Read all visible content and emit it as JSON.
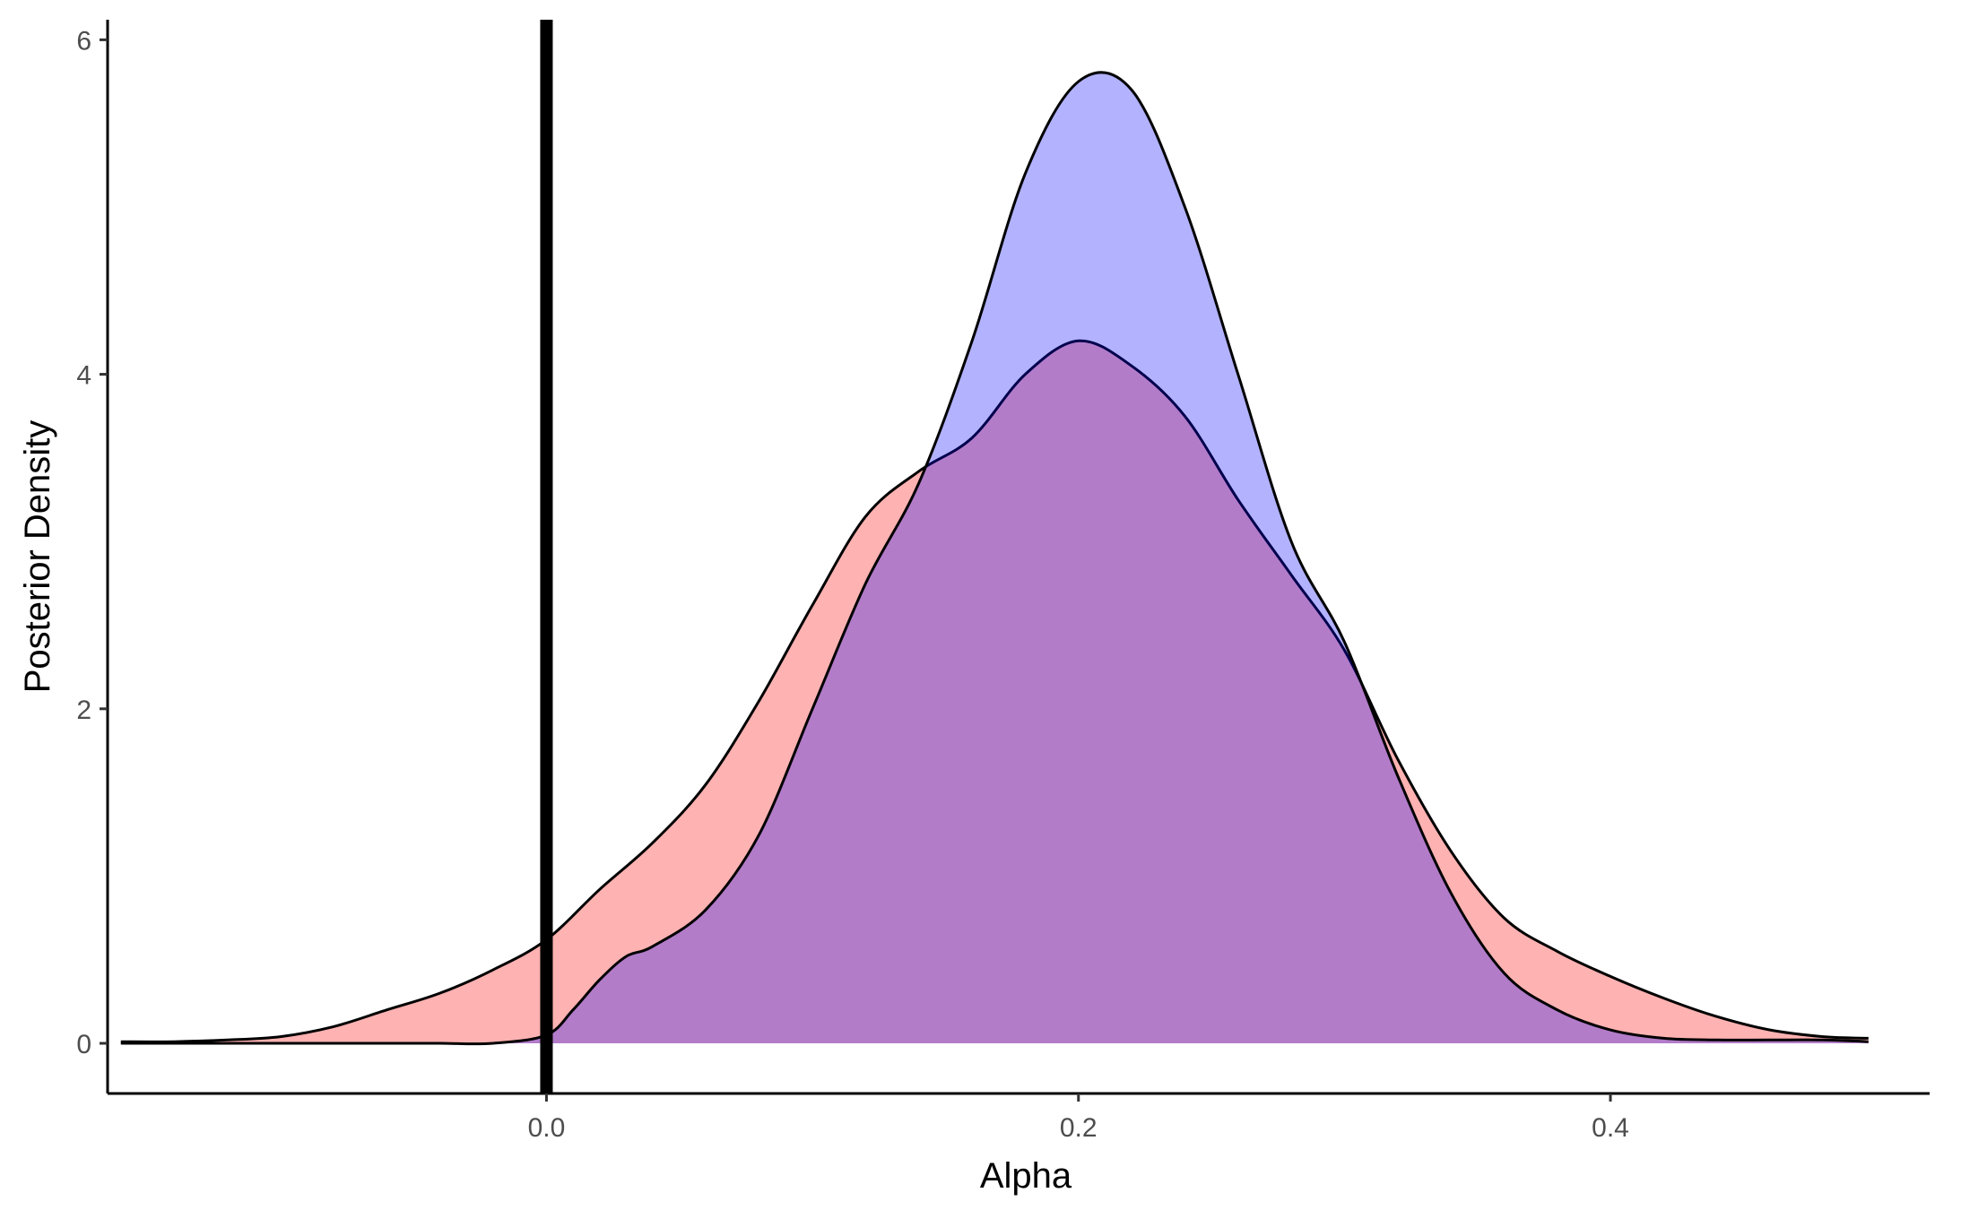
{
  "chart_data": {
    "type": "area",
    "title": "",
    "xlabel": "Alpha",
    "ylabel": "Posterior Density",
    "xlim": [
      -0.165,
      0.52
    ],
    "ylim": [
      -0.3,
      6.12
    ],
    "x_ticks": [
      0.0,
      0.2,
      0.4
    ],
    "x_tick_labels": [
      "0.0",
      "0.2",
      "0.4"
    ],
    "y_ticks": [
      0,
      2,
      4,
      6
    ],
    "y_tick_labels": [
      "0",
      "2",
      "4",
      "6"
    ],
    "grid": false,
    "legend": "none",
    "reference_line": {
      "orientation": "vertical",
      "x": 0.0,
      "color": "#000000"
    },
    "series": [
      {
        "color": "#ff0000",
        "fill_opacity": 0.3,
        "x": [
          -0.16,
          -0.14,
          -0.12,
          -0.1,
          -0.08,
          -0.06,
          -0.04,
          -0.02,
          0.0,
          0.02,
          0.04,
          0.06,
          0.08,
          0.1,
          0.12,
          0.14,
          0.16,
          0.18,
          0.2,
          0.22,
          0.24,
          0.26,
          0.28,
          0.3,
          0.32,
          0.34,
          0.36,
          0.38,
          0.4,
          0.42,
          0.44,
          0.46,
          0.48,
          0.497
        ],
        "y": [
          0.01,
          0.01,
          0.02,
          0.04,
          0.1,
          0.2,
          0.3,
          0.44,
          0.62,
          0.92,
          1.2,
          1.55,
          2.05,
          2.62,
          3.15,
          3.42,
          3.62,
          4.0,
          4.2,
          4.05,
          3.75,
          3.25,
          2.8,
          2.35,
          1.7,
          1.15,
          0.75,
          0.55,
          0.4,
          0.27,
          0.16,
          0.08,
          0.04,
          0.03
        ]
      },
      {
        "color": "#0000ff",
        "fill_opacity": 0.3,
        "x": [
          -0.16,
          -0.14,
          -0.12,
          -0.1,
          -0.08,
          -0.06,
          -0.04,
          -0.02,
          0.0,
          0.01,
          0.02,
          0.03,
          0.04,
          0.06,
          0.08,
          0.1,
          0.12,
          0.14,
          0.16,
          0.18,
          0.2,
          0.22,
          0.24,
          0.26,
          0.28,
          0.3,
          0.32,
          0.34,
          0.36,
          0.38,
          0.4,
          0.42,
          0.44,
          0.46,
          0.48,
          0.497
        ],
        "y": [
          0.0,
          0.0,
          0.0,
          0.0,
          0.0,
          0.0,
          0.0,
          0.0,
          0.05,
          0.2,
          0.38,
          0.52,
          0.58,
          0.8,
          1.25,
          2.0,
          2.75,
          3.35,
          4.2,
          5.2,
          5.75,
          5.7,
          5.0,
          4.0,
          3.0,
          2.4,
          1.6,
          0.9,
          0.42,
          0.2,
          0.08,
          0.03,
          0.02,
          0.02,
          0.02,
          0.01
        ]
      }
    ]
  }
}
